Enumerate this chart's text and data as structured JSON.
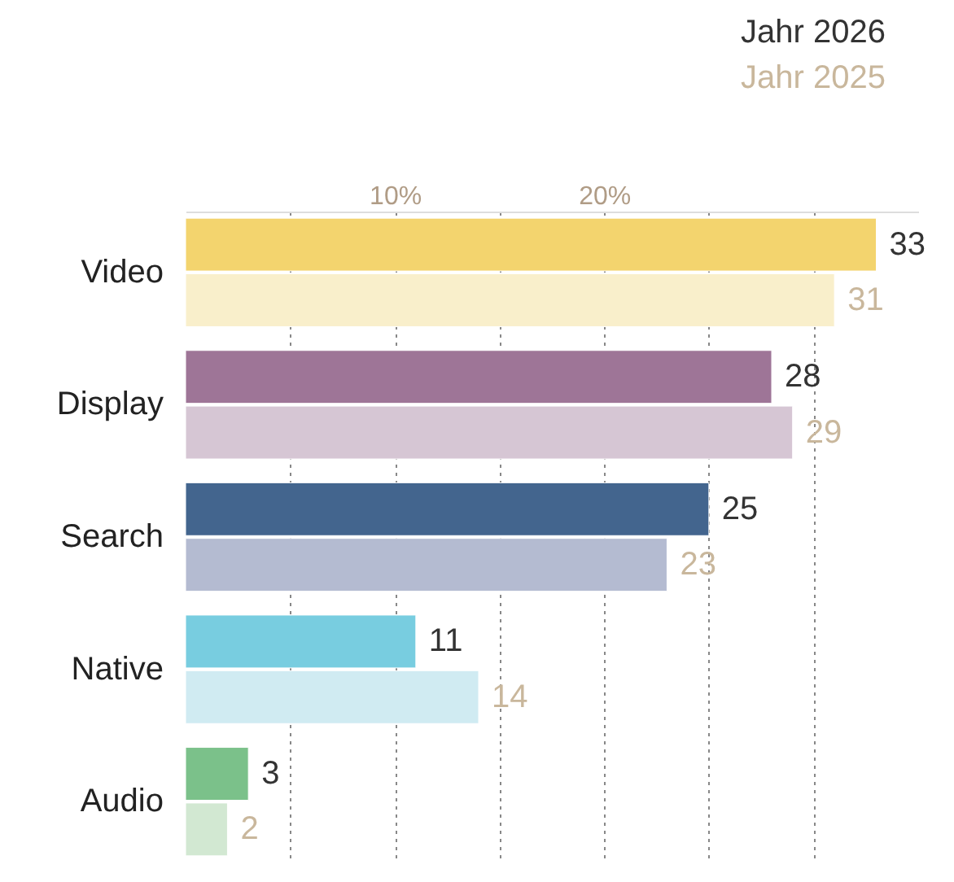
{
  "chart_data": {
    "type": "bar",
    "orientation": "horizontal",
    "categories": [
      "Video",
      "Display",
      "Search",
      "Native",
      "Audio"
    ],
    "series": [
      {
        "name": "Jahr 2026",
        "color": "#333333",
        "colors": [
          "#f3d46e",
          "#9e7597",
          "#43658e",
          "#78cde0",
          "#7bc18a"
        ],
        "values": [
          33,
          28,
          25,
          11,
          3
        ]
      },
      {
        "name": "Jahr 2025",
        "color": "#c9b79c",
        "colors": [
          "#f9efcb",
          "#d6c6d4",
          "#b4bbd1",
          "#d0ebf2",
          "#d2e8d2"
        ],
        "values": [
          31,
          29,
          23,
          14,
          2
        ]
      }
    ],
    "xlim": [
      0,
      35
    ],
    "xticks": [
      {
        "value": 5,
        "label": null
      },
      {
        "value": 10,
        "label": "10%"
      },
      {
        "value": 15,
        "label": null
      },
      {
        "value": 20,
        "label": "20%"
      },
      {
        "value": 25,
        "label": null
      },
      {
        "value": 30,
        "label": null
      }
    ],
    "grid": "x",
    "data_labels": true,
    "legend": "top right"
  }
}
